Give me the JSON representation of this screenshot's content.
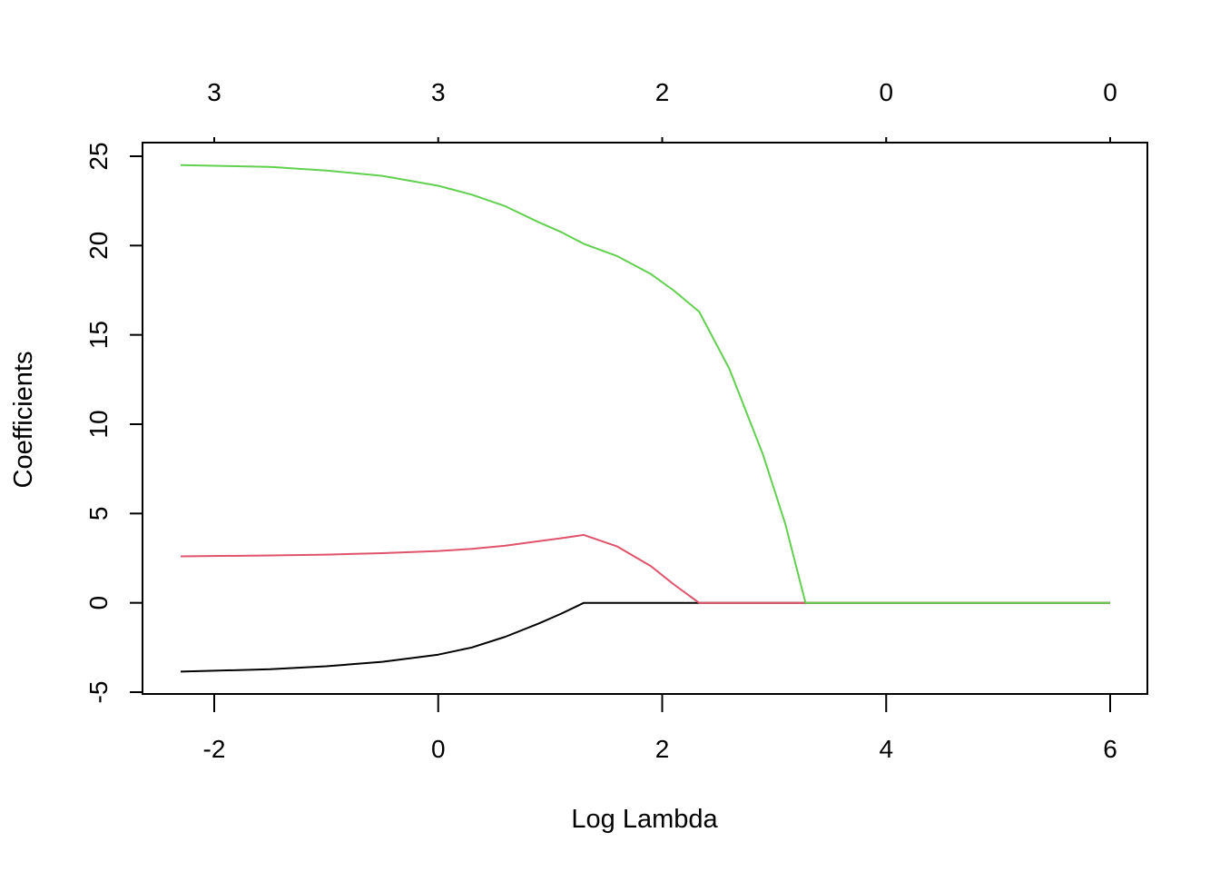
{
  "chart_data": {
    "type": "line",
    "title": "",
    "xlabel": "Log Lambda",
    "ylabel": "Coefficients",
    "xlim": [
      -2.6,
      6.3
    ],
    "ylim": [
      -5,
      25
    ],
    "x_ticks": [
      -2,
      0,
      2,
      4,
      6
    ],
    "x_tick_labels": [
      "-2",
      "0",
      "2",
      "4",
      "6"
    ],
    "y_ticks": [
      -5,
      0,
      5,
      10,
      15,
      20,
      25
    ],
    "y_tick_labels": [
      "-5",
      "0",
      "5",
      "10",
      "15",
      "20",
      "25"
    ],
    "top_axis": {
      "ticks": [
        -2,
        0,
        2,
        4,
        6
      ],
      "labels": [
        "3",
        "3",
        "2",
        "0",
        "0"
      ]
    },
    "grid": false,
    "legend": "none",
    "series": [
      {
        "color": "#000000",
        "x": [
          -2.3,
          -1.5,
          -1.0,
          -0.5,
          0.0,
          0.3,
          0.6,
          0.9,
          1.1,
          1.3,
          1.5,
          2.0,
          2.33,
          3.28,
          4.0,
          5.0,
          6.0
        ],
        "y": [
          -3.85,
          -3.72,
          -3.55,
          -3.3,
          -2.9,
          -2.5,
          -1.9,
          -1.15,
          -0.6,
          0.0,
          0.0,
          0.0,
          0.0,
          0.0,
          0.0,
          0.0,
          0.0
        ]
      },
      {
        "color": "#DF536B",
        "x": [
          -2.3,
          -1.5,
          -1.0,
          -0.5,
          0.0,
          0.3,
          0.6,
          0.9,
          1.1,
          1.3,
          1.6,
          1.9,
          2.1,
          2.33,
          3.28,
          4.0,
          5.0,
          6.0
        ],
        "y": [
          2.6,
          2.65,
          2.7,
          2.78,
          2.9,
          3.02,
          3.2,
          3.45,
          3.62,
          3.8,
          3.15,
          2.05,
          1.05,
          0.0,
          0.0,
          0.0,
          0.0,
          0.0
        ]
      },
      {
        "color": "#61D04F",
        "x": [
          -2.3,
          -1.5,
          -1.0,
          -0.5,
          0.0,
          0.3,
          0.6,
          0.9,
          1.1,
          1.3,
          1.6,
          1.9,
          2.1,
          2.33,
          2.6,
          2.9,
          3.1,
          3.28,
          4.0,
          5.0,
          6.0
        ],
        "y": [
          24.5,
          24.4,
          24.2,
          23.9,
          23.35,
          22.85,
          22.2,
          21.3,
          20.75,
          20.1,
          19.4,
          18.4,
          17.5,
          16.3,
          13.1,
          8.3,
          4.4,
          0.0,
          0.0,
          0.0,
          0.0
        ]
      }
    ]
  }
}
